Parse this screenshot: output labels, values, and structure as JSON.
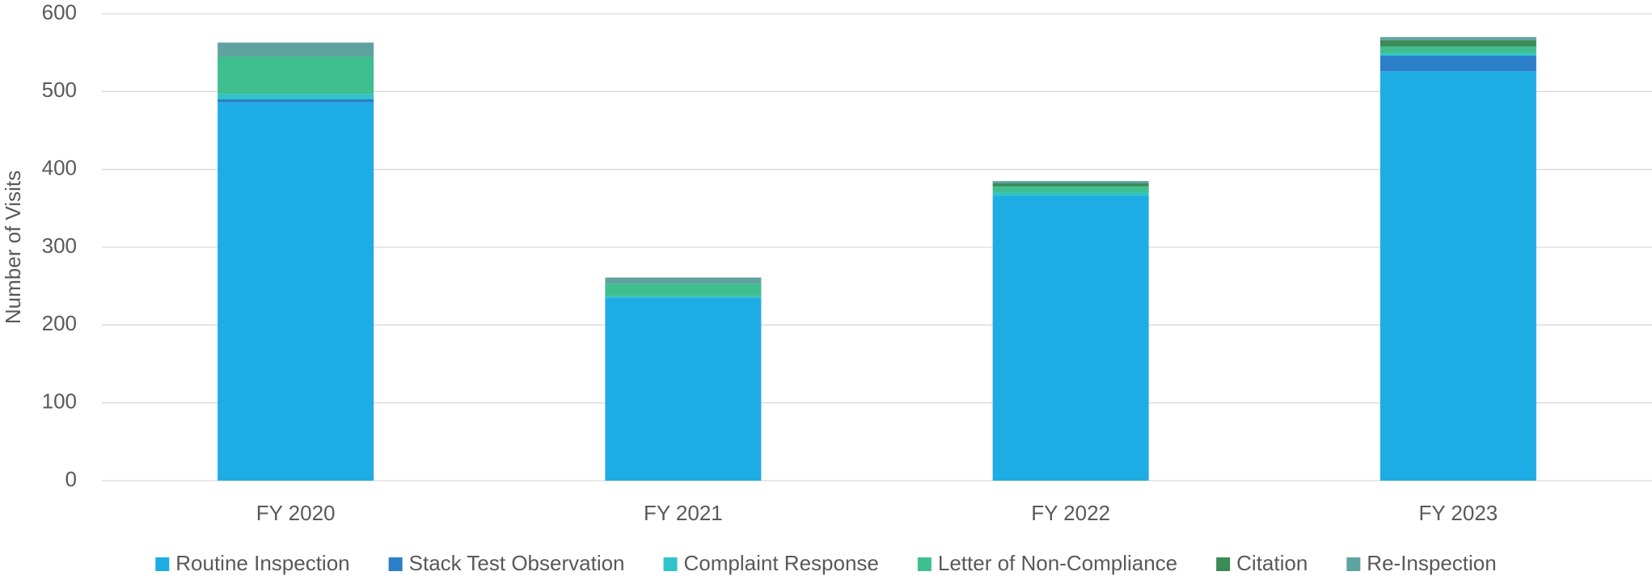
{
  "chart_data": {
    "type": "bar",
    "stacked": true,
    "y_label": "Number of Visits",
    "categories": [
      "FY 2020",
      "FY 2021",
      "FY 2022",
      "FY 2023"
    ],
    "series": [
      {
        "name": "Routine Inspection",
        "color": "#1eace4",
        "values": [
          486,
          235,
          366,
          526
        ]
      },
      {
        "name": "Stack Test Observation",
        "color": "#2b7ec9",
        "values": [
          4,
          0,
          0,
          20
        ]
      },
      {
        "name": "Complaint Response",
        "color": "#2ec4c8",
        "values": [
          7,
          2,
          4,
          3
        ]
      },
      {
        "name": "Letter of Non-Compliance",
        "color": "#3fbf8f",
        "values": [
          48,
          16,
          8,
          9
        ]
      },
      {
        "name": "Citation",
        "color": "#3c8a57",
        "values": [
          0,
          0,
          4,
          8
        ]
      },
      {
        "name": "Re-Inspection",
        "color": "#5fa3a0",
        "values": [
          18,
          8,
          3,
          4
        ]
      }
    ],
    "ylim": [
      0,
      600
    ],
    "yticks": [
      0,
      100,
      200,
      300,
      400,
      500,
      600
    ],
    "grid": true,
    "legend": "bottom"
  }
}
